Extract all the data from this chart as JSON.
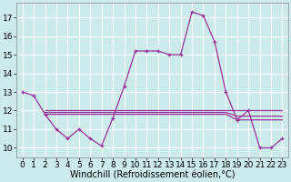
{
  "background_color": "#cceaea",
  "grid_color": "#ffffff",
  "line_color": "#993399",
  "xlabel": "Windchill (Refroidissement éolien,°C)",
  "xlabel_fontsize": 7,
  "tick_fontsize": 6.5,
  "ylim": [
    9.5,
    17.8
  ],
  "xlim": [
    -0.5,
    23.5
  ],
  "yticks": [
    10,
    11,
    12,
    13,
    14,
    15,
    16,
    17
  ],
  "xticks": [
    0,
    1,
    2,
    3,
    4,
    5,
    6,
    7,
    8,
    9,
    10,
    11,
    12,
    13,
    14,
    15,
    16,
    17,
    18,
    19,
    20,
    21,
    22,
    23
  ],
  "main_line": {
    "x": [
      0,
      1,
      2,
      3,
      4,
      5,
      6,
      7,
      8,
      9,
      10,
      11,
      12,
      13,
      14,
      15,
      16,
      17,
      18,
      19,
      20,
      21,
      22,
      23
    ],
    "y": [
      13.0,
      12.8,
      11.8,
      11.0,
      10.5,
      11.0,
      10.5,
      10.1,
      11.6,
      13.3,
      15.2,
      15.2,
      15.2,
      15.0,
      15.0,
      17.3,
      17.1,
      15.7,
      13.0,
      11.5,
      12.0,
      10.0,
      10.0,
      10.5
    ]
  },
  "flat_line1": {
    "x": [
      2,
      3,
      4,
      5,
      6,
      7,
      8,
      9,
      10,
      11,
      12,
      13,
      14,
      15,
      16,
      17,
      18,
      19,
      20,
      21,
      22,
      23
    ],
    "y": [
      11.8,
      11.8,
      11.8,
      11.8,
      11.8,
      11.8,
      11.8,
      11.8,
      11.8,
      11.8,
      11.8,
      11.8,
      11.8,
      11.8,
      11.8,
      11.8,
      11.8,
      11.5,
      11.5,
      11.5,
      11.5,
      11.5
    ]
  },
  "flat_line2": {
    "x": [
      2,
      3,
      4,
      5,
      6,
      7,
      8,
      9,
      10,
      11,
      12,
      13,
      14,
      15,
      16,
      17,
      18,
      19,
      20,
      21,
      22,
      23
    ],
    "y": [
      11.9,
      11.9,
      11.9,
      11.9,
      11.9,
      11.9,
      11.9,
      11.9,
      11.9,
      11.9,
      11.9,
      11.9,
      11.9,
      11.9,
      11.9,
      11.9,
      11.9,
      11.7,
      11.7,
      11.7,
      11.7,
      11.7
    ]
  },
  "flat_line3": {
    "x": [
      2,
      3,
      4,
      5,
      6,
      7,
      8,
      9,
      10,
      11,
      12,
      13,
      14,
      15,
      16,
      17,
      18,
      19,
      20,
      21,
      22,
      23
    ],
    "y": [
      12.0,
      12.0,
      12.0,
      12.0,
      12.0,
      12.0,
      12.0,
      12.0,
      12.0,
      12.0,
      12.0,
      12.0,
      12.0,
      12.0,
      12.0,
      12.0,
      12.0,
      12.0,
      12.0,
      12.0,
      12.0,
      12.0
    ]
  }
}
